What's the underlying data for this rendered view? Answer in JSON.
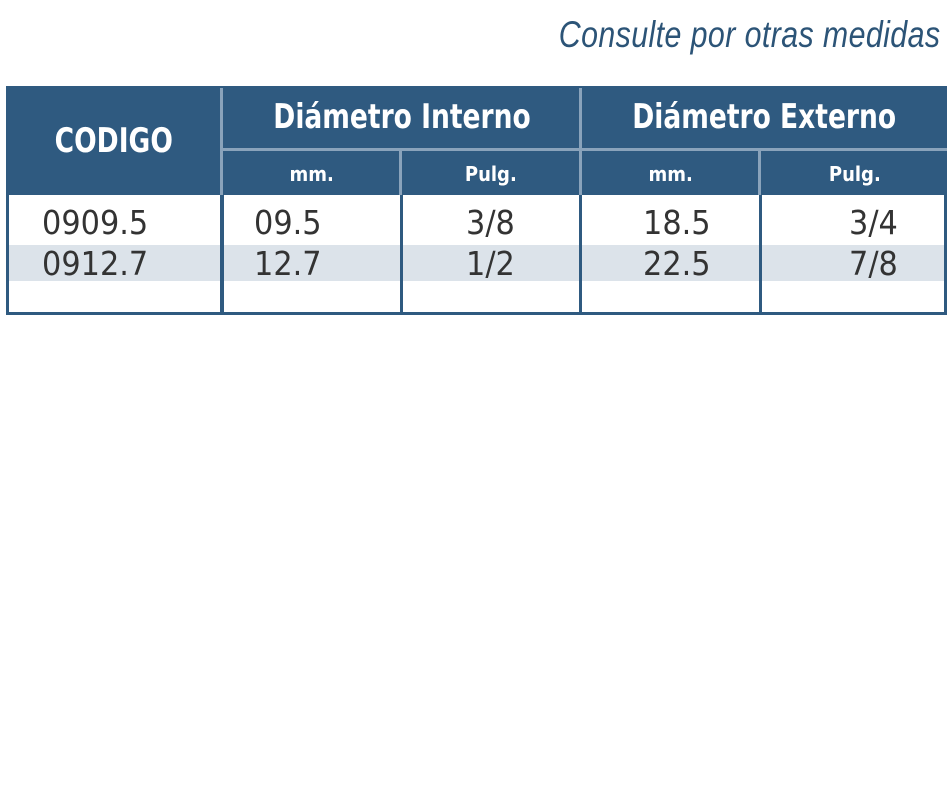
{
  "note": "Consulte por otras medidas",
  "table": {
    "headers": {
      "codigo": "CODIGO",
      "interno": "Diámetro Interno",
      "externo": "Diámetro Externo",
      "interno_mm": "mm.",
      "interno_pulg": "Pulg.",
      "externo_mm": "mm.",
      "externo_pulg": "Pulg."
    },
    "rows": [
      {
        "codigo": "0909.5",
        "int_mm": "09.5",
        "int_pulg": "3/8",
        "ext_mm": "18.5",
        "ext_pulg": "3/4"
      },
      {
        "codigo": "0912.7",
        "int_mm": "12.7",
        "int_pulg": "1/2",
        "ext_mm": "22.5",
        "ext_pulg": "7/8"
      }
    ]
  },
  "colors": {
    "header_bg": "#2f5a80",
    "note_text": "#2c5477",
    "band": "#dce3ea"
  }
}
